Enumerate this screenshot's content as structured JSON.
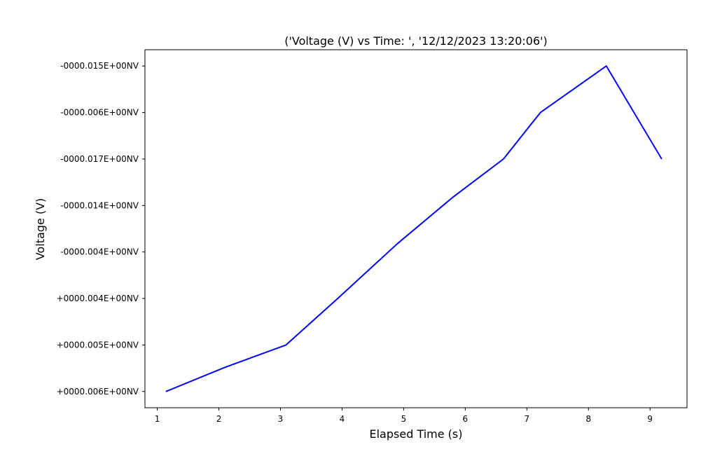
{
  "chart_data": {
    "type": "line",
    "title": "('Voltage (V) vs Time: ', '12/12/2023 13:20:06')",
    "xlabel": "Elapsed Time (s)",
    "ylabel": "Voltage (V)",
    "xlim": [
      0.8,
      9.6
    ],
    "xticks": [
      1,
      2,
      3,
      4,
      5,
      6,
      7,
      8,
      9
    ],
    "xtick_labels": [
      "1",
      "2",
      "3",
      "4",
      "5",
      "6",
      "7",
      "8",
      "9"
    ],
    "yticks": [
      0,
      1,
      2,
      3,
      4,
      5,
      6,
      7
    ],
    "ytick_labels": [
      "+0000.006E+00NV",
      "+0000.005E+00NV",
      "+0000.004E+00NV",
      "-0000.004E+00NV",
      "-0000.014E+00NV",
      "-0000.017E+00NV",
      "-0000.006E+00NV",
      "-0000.015E+00NV"
    ],
    "ylim": [
      -0.35,
      7.35
    ],
    "grid": false,
    "series": [
      {
        "color": "#0000ff",
        "x": [
          1.14,
          2.1,
          3.09,
          3.93,
          4.9,
          5.8,
          6.62,
          7.22,
          8.29,
          9.19
        ],
        "y": [
          0,
          0.52,
          1,
          2,
          3.18,
          4.18,
          5,
          6,
          7,
          5
        ]
      }
    ]
  }
}
